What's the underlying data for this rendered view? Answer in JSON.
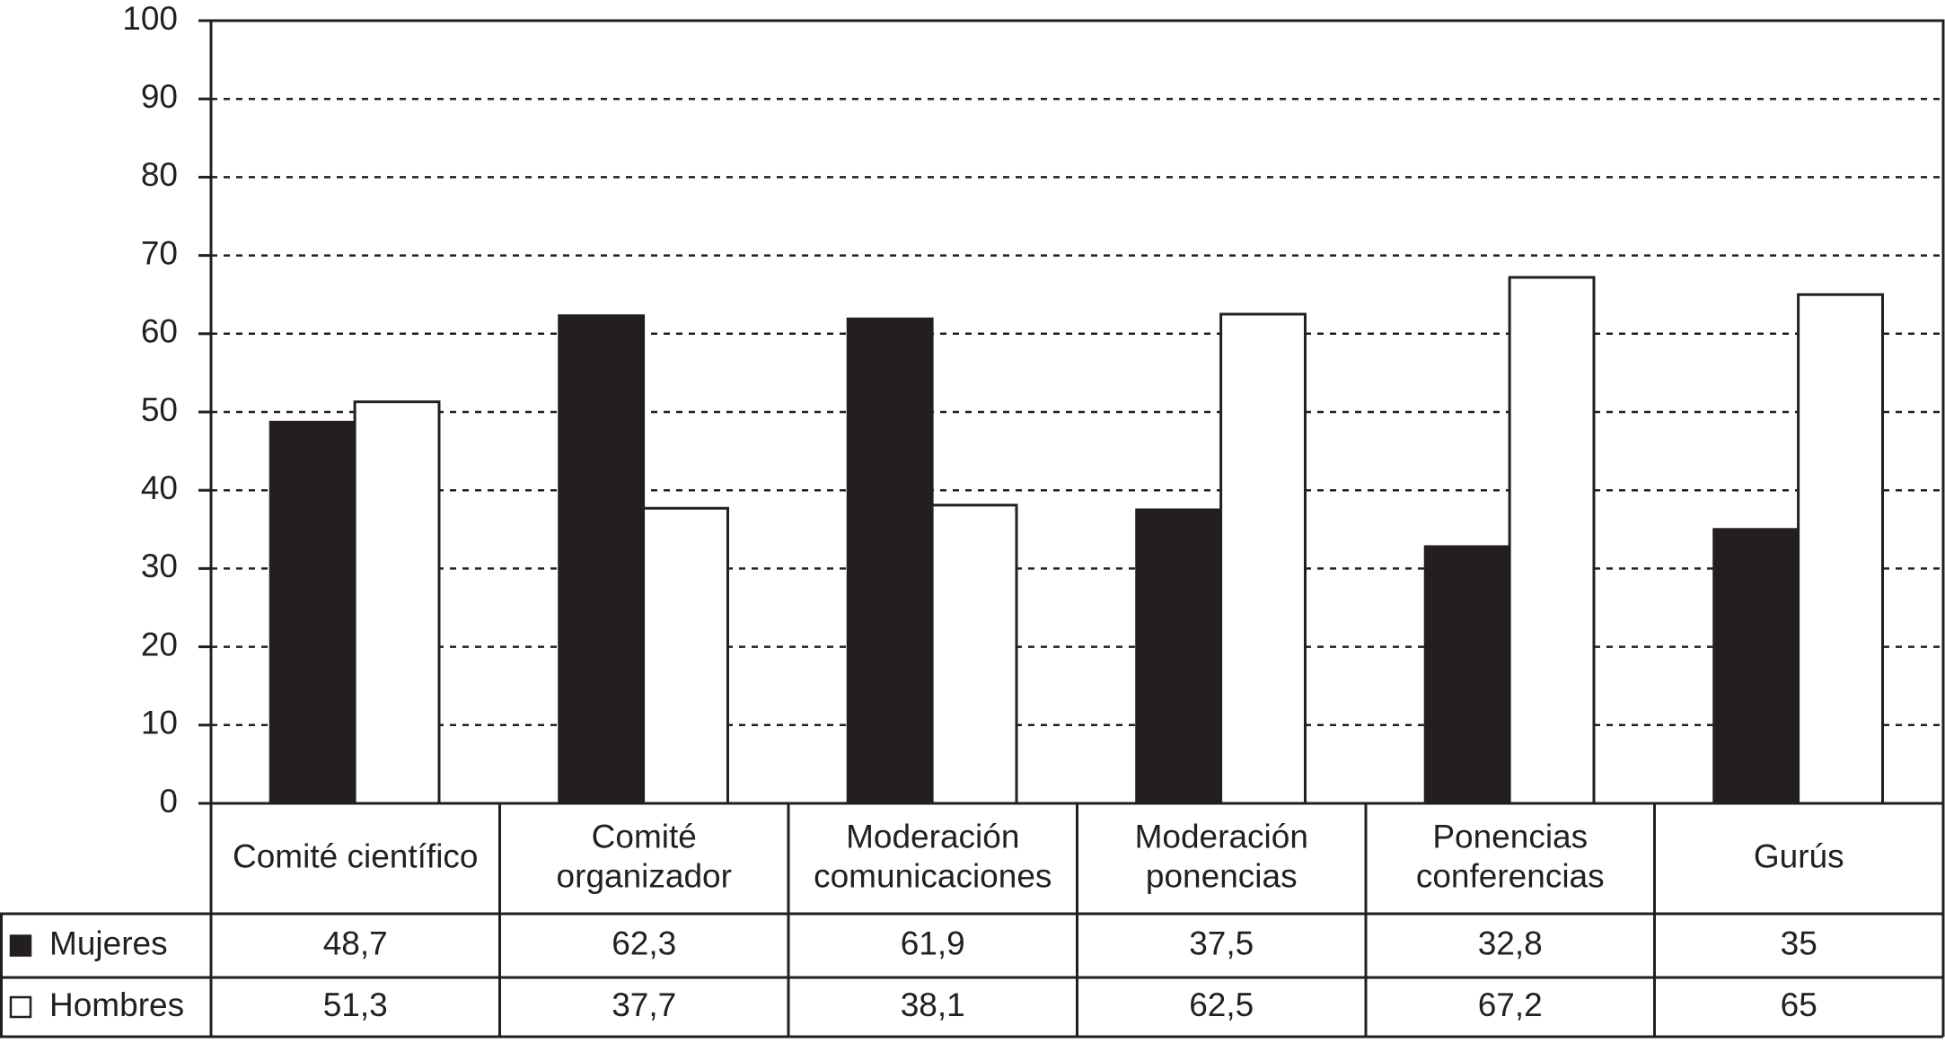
{
  "chart_data": {
    "type": "bar",
    "categories": [
      "Comité científico",
      "Comité organizador",
      "Moderación comunicaciones",
      "Moderación ponencias",
      "Ponencias conferencias",
      "Gurús"
    ],
    "series": [
      {
        "name": "Mujeres",
        "color": "#231f20",
        "values": [
          48.7,
          62.3,
          61.9,
          37.5,
          32.8,
          35
        ],
        "value_labels": [
          "48,7",
          "62,3",
          "61,9",
          "37,5",
          "32,8",
          "35"
        ]
      },
      {
        "name": "Hombres",
        "color": "#ffffff",
        "values": [
          51.3,
          37.7,
          38.1,
          62.5,
          67.2,
          65
        ],
        "value_labels": [
          "51,3",
          "37,7",
          "38,1",
          "62,5",
          "67,2",
          "65"
        ]
      }
    ],
    "ylim": [
      0,
      100
    ],
    "yticks": [
      0,
      10,
      20,
      30,
      40,
      50,
      60,
      70,
      80,
      90,
      100
    ],
    "grid": true
  }
}
